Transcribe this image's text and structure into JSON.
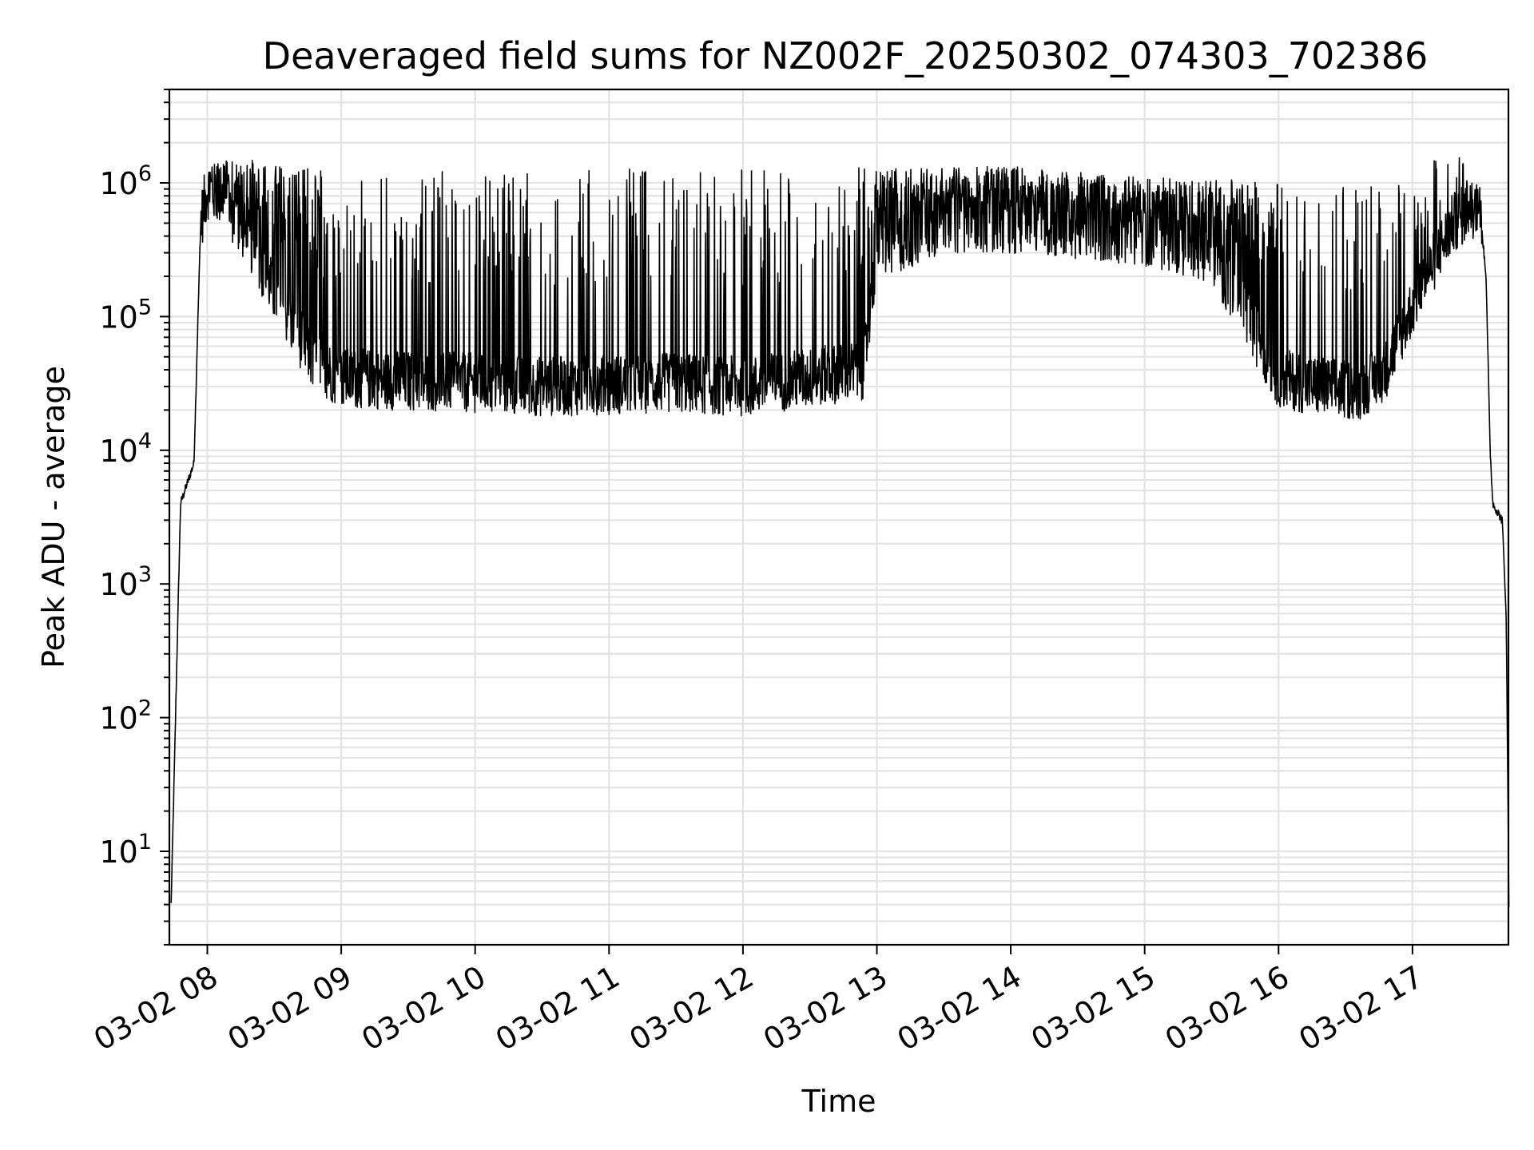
{
  "chart_data": {
    "type": "line",
    "title": "Deaveraged field sums for NZ002F_20250302_074303_702386",
    "xlabel": "Time",
    "ylabel": "Peak ADU - average",
    "yscale": "log",
    "grid": "on (major and minor)",
    "series_color": "#000000",
    "xlim": [
      "03-02 07:43",
      "03-02 17:43"
    ],
    "ylim": [
      2,
      5000000
    ],
    "x_tick_labels": [
      "03-02 08",
      "03-02 09",
      "03-02 10",
      "03-02 11",
      "03-02 12",
      "03-02 13",
      "03-02 14",
      "03-02 15",
      "03-02 16",
      "03-02 17"
    ],
    "y_ticks": [
      {
        "base": "10",
        "exp": "1",
        "value": 10
      },
      {
        "base": "10",
        "exp": "2",
        "value": 100
      },
      {
        "base": "10",
        "exp": "3",
        "value": 1000
      },
      {
        "base": "10",
        "exp": "4",
        "value": 10000
      },
      {
        "base": "10",
        "exp": "5",
        "value": 100000
      },
      {
        "base": "10",
        "exp": "6",
        "value": 1000000
      }
    ],
    "x_hours": [
      7.73,
      7.8,
      7.9,
      7.95,
      8.0,
      8.1,
      8.3,
      8.5,
      8.8,
      9.0,
      9.5,
      10.0,
      10.5,
      11.0,
      11.5,
      12.0,
      12.5,
      12.9,
      13.0,
      13.5,
      14.0,
      14.5,
      15.0,
      15.5,
      16.0,
      16.3,
      16.6,
      16.8,
      17.0,
      17.3,
      17.5,
      17.55,
      17.58,
      17.6,
      17.67,
      17.7,
      17.72
    ],
    "y_baseline": [
      4,
      4000,
      8000,
      500000,
      900000,
      800000,
      400000,
      150000,
      45000,
      35000,
      33000,
      32000,
      30000,
      31000,
      32000,
      30000,
      35000,
      40000,
      300000,
      500000,
      500000,
      450000,
      400000,
      300000,
      35000,
      30000,
      28000,
      40000,
      120000,
      500000,
      700000,
      200000,
      10000,
      4000,
      3000,
      600,
      4
    ],
    "y_spike_tops": [
      4,
      4000,
      8000,
      1400000,
      1500000,
      1500000,
      1500000,
      1400000,
      1300000,
      1300000,
      1200000,
      1300000,
      1300000,
      1300000,
      1300000,
      1300000,
      1300000,
      1300000,
      1300000,
      1300000,
      1350000,
      1200000,
      1100000,
      1100000,
      1000000,
      1000000,
      1000000,
      1000000,
      1200000,
      2000000,
      1100000,
      200000,
      10000,
      4000,
      3000,
      600,
      4
    ]
  }
}
